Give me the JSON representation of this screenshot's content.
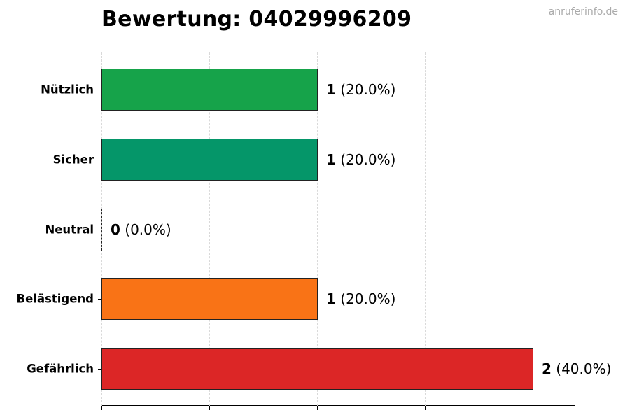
{
  "header": {
    "title": "Bewertung: 04029996209",
    "watermark": "anruferinfo.de"
  },
  "chart_data": {
    "type": "bar",
    "orientation": "horizontal",
    "title": "Bewertung: 04029996209",
    "xlabel": "",
    "ylabel": "",
    "categories": [
      "Nützlich",
      "Sicher",
      "Neutral",
      "Belästigend",
      "Gefährlich"
    ],
    "values": [
      1,
      1,
      0,
      1,
      2
    ],
    "percentages": [
      "20.0%",
      "20.0%",
      "0.0%",
      "20.0%",
      "40.0%"
    ],
    "value_labels": [
      "1",
      "1",
      "0",
      "1",
      "2"
    ],
    "percent_labels": [
      "(20.0%)",
      "(20.0%)",
      "(0.0%)",
      "(20.0%)",
      "(40.0%)"
    ],
    "colors": [
      "#16a34a",
      "#059669",
      "#9ca3af",
      "#f97316",
      "#dc2626"
    ],
    "xlim": [
      0,
      2.2
    ],
    "x_gridlines": [
      0,
      0.5,
      1.0,
      1.5,
      2.0
    ],
    "x_tick_labels_visible": false,
    "grid": true,
    "legend": null
  }
}
